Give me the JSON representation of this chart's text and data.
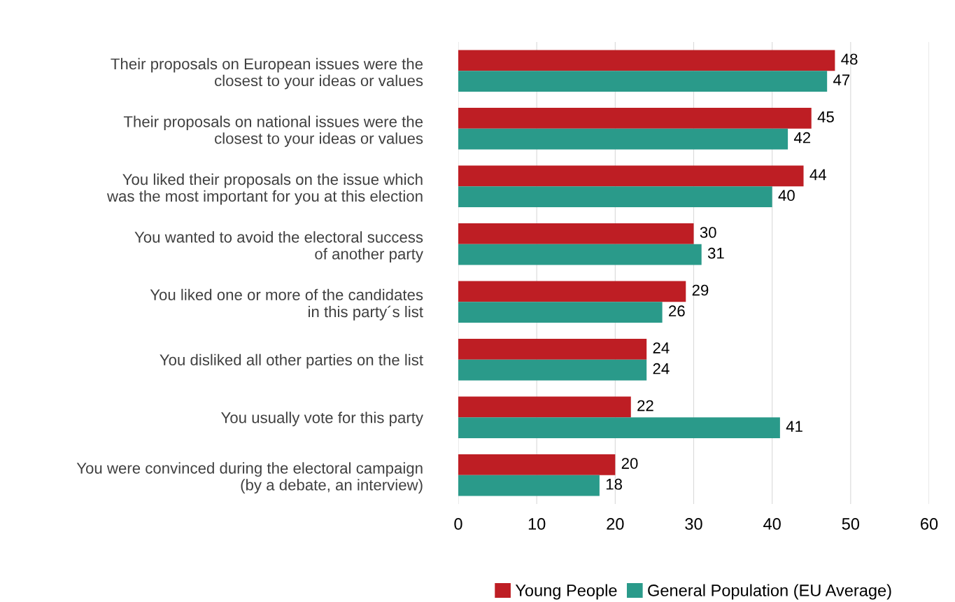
{
  "chart_data": {
    "type": "bar",
    "orientation": "horizontal",
    "categories": [
      "Their proposals on European issues were the\nclosest to your ideas or values",
      "Their proposals on national issues were the\nclosest to your ideas or values",
      "You liked their proposals on the issue which\nwas the most important for you at this election",
      "You wanted to avoid the electoral success\nof another party",
      "You liked one or more of the candidates\nin this party´s list",
      "You disliked all other parties on the list",
      "You usually vote for this party",
      "You were convinced during the electoral campaign\n(by a debate, an interview)"
    ],
    "series": [
      {
        "name": "Young People",
        "color": "#be1e24",
        "values": [
          48,
          45,
          44,
          30,
          29,
          24,
          22,
          20
        ]
      },
      {
        "name": "General Population (EU Average)",
        "color": "#2a9a8a",
        "values": [
          47,
          42,
          40,
          31,
          26,
          24,
          41,
          18
        ]
      }
    ],
    "xlim": [
      0,
      60
    ],
    "xticks": [
      0,
      10,
      20,
      30,
      40,
      50,
      60
    ],
    "grid": "x",
    "legend": "bottom",
    "data_labels": true
  }
}
